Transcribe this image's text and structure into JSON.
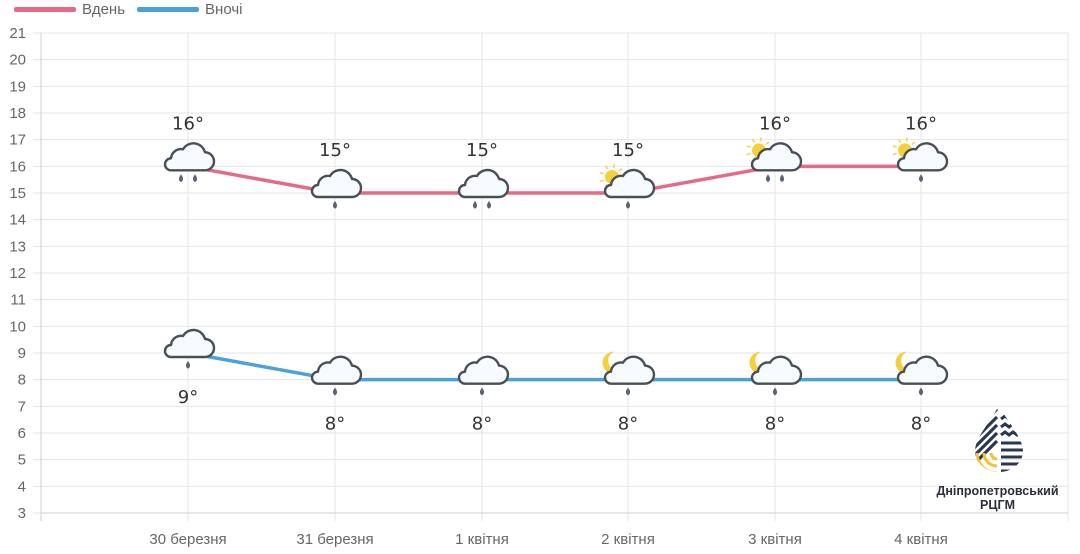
{
  "legend": {
    "day_label": "Вдень",
    "night_label": "Вночі",
    "day_color": "#e36b86",
    "night_color": "#4aa1dc"
  },
  "logo": {
    "line1": "Дніпропетровський",
    "line2": "РЦГМ"
  },
  "chart_data": {
    "type": "line",
    "title": "",
    "xlabel": "",
    "ylabel": "",
    "categories": [
      "30 березня",
      "31 березня",
      "1 квітня",
      "2 квітня",
      "3 квітня",
      "4 квітня"
    ],
    "series": [
      {
        "name": "Вдень",
        "color": "#e36b86",
        "values": [
          16,
          15,
          15,
          15,
          16,
          16
        ],
        "labels": [
          "16°",
          "15°",
          "15°",
          "15°",
          "16°",
          "16°"
        ],
        "icons": [
          "cloud-rain-heavy",
          "cloud-rain",
          "cloud-rain-heavy",
          "sun-cloud-rain",
          "sun-cloud-rain-heavy",
          "sun-cloud-rain"
        ]
      },
      {
        "name": "Вночі",
        "color": "#4aa1dc",
        "values": [
          9,
          8,
          8,
          8,
          8,
          8
        ],
        "labels": [
          "9°",
          "8°",
          "8°",
          "8°",
          "8°",
          "8°"
        ],
        "icons": [
          "cloud-rain",
          "cloud-rain",
          "cloud-rain",
          "moon-cloud-rain",
          "moon-cloud-rain",
          "moon-cloud-rain"
        ]
      }
    ],
    "ylim": [
      3,
      21
    ],
    "yticks": [
      21,
      20,
      19,
      18,
      17,
      16,
      15,
      14,
      13,
      12,
      11,
      10,
      9,
      8,
      7,
      6,
      5,
      4,
      3
    ],
    "grid": true,
    "legend_position": "top-left"
  }
}
